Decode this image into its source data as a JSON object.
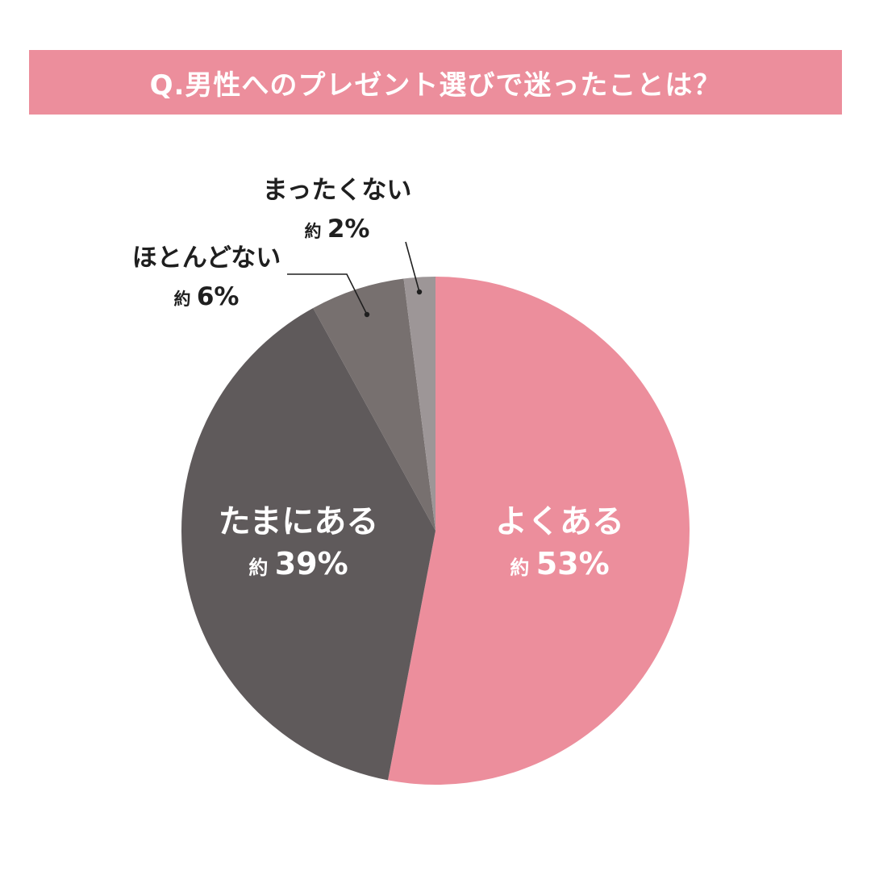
{
  "title": "Q.男性へのプレゼント選びで迷ったことは？",
  "colors": {
    "title_bar": "#ec8e9c",
    "title_text": "#ffffff"
  },
  "chart_data": {
    "type": "pie",
    "title": "Q.男性へのプレゼント選びで迷ったことは？",
    "approx_prefix": "約",
    "slices": [
      {
        "label": "よくある",
        "value": 53,
        "value_label": "53%",
        "color": "#ec8e9c",
        "label_color": "#ffffff",
        "label_placement": "inside"
      },
      {
        "label": "たまにある",
        "value": 39,
        "value_label": "39%",
        "color": "#5f5a5b",
        "label_color": "#ffffff",
        "label_placement": "inside"
      },
      {
        "label": "ほとんどない",
        "value": 6,
        "value_label": "6%",
        "color": "#77706f",
        "label_color": "#1f1f1f",
        "label_placement": "outside"
      },
      {
        "label": "まったくない",
        "value": 2,
        "value_label": "2%",
        "color": "#9d9697",
        "label_color": "#1f1f1f",
        "label_placement": "outside"
      }
    ]
  }
}
